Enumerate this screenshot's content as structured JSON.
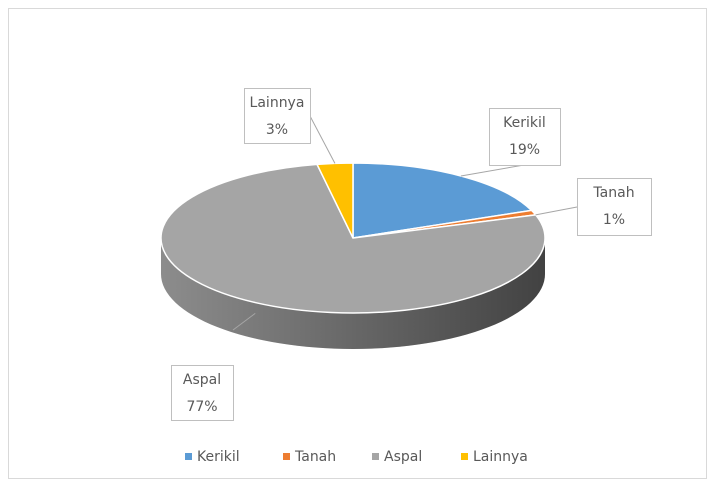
{
  "chart_data": {
    "type": "pie3d",
    "categories": [
      "Kerikil",
      "Tanah",
      "Aspal",
      "Lainnya"
    ],
    "values": [
      19,
      1,
      77,
      3
    ],
    "value_labels": [
      "19%",
      "1%",
      "77%",
      "3%"
    ],
    "colors": [
      "#5b9bd5",
      "#ed7d31",
      "#a5a5a5",
      "#ffc000"
    ],
    "legend": "bottom"
  }
}
